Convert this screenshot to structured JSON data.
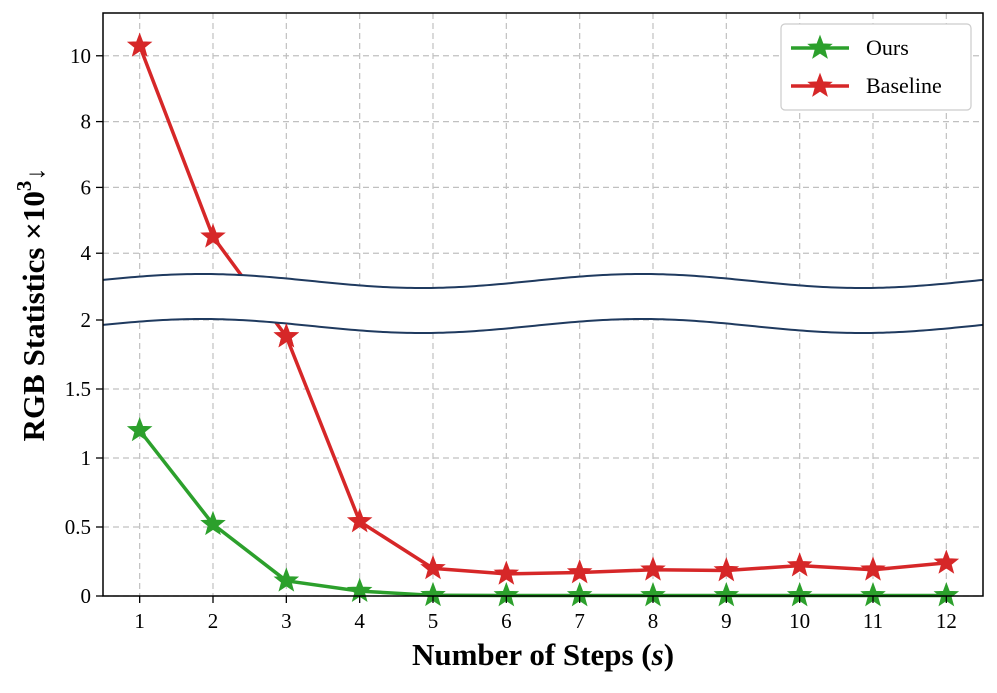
{
  "chart_data": {
    "type": "line",
    "xlabel_text": "Number of Steps (",
    "xlabel_var": "s",
    "xlabel_close": ")",
    "ylabel_text": "RGB Statistics ×10",
    "ylabel_sup": "3",
    "ylabel_arrow": "↓",
    "x": [
      1,
      2,
      3,
      4,
      5,
      6,
      7,
      8,
      9,
      10,
      11,
      12
    ],
    "xlim": [
      0.5,
      12.5
    ],
    "y_axis_broken": true,
    "y_lower_segment": {
      "range": [
        0,
        2.0
      ],
      "ticks": [
        0,
        0.5,
        1,
        1.5,
        2
      ],
      "tick_labels": [
        "0",
        "0.5",
        "1",
        "1.5",
        "2"
      ]
    },
    "y_upper_segment": {
      "range": [
        2.7,
        11.3
      ],
      "ticks": [
        4,
        6,
        8,
        10
      ],
      "tick_labels": [
        "4",
        "6",
        "8",
        "10"
      ]
    },
    "series": [
      {
        "name": "Ours",
        "color": "#2ca02c",
        "marker": "star",
        "values": [
          1.2,
          0.52,
          0.11,
          0.035,
          0.005,
          0.004,
          0.004,
          0.004,
          0.004,
          0.004,
          0.004,
          0.004
        ]
      },
      {
        "name": "Baseline",
        "color": "#d62728",
        "marker": "star",
        "values": [
          10.3,
          4.5,
          1.88,
          0.54,
          0.2,
          0.16,
          0.17,
          0.19,
          0.185,
          0.22,
          0.19,
          0.24
        ]
      }
    ],
    "grid": true,
    "legend_position": "top-right",
    "break_band_color": "#1f3a5f"
  }
}
